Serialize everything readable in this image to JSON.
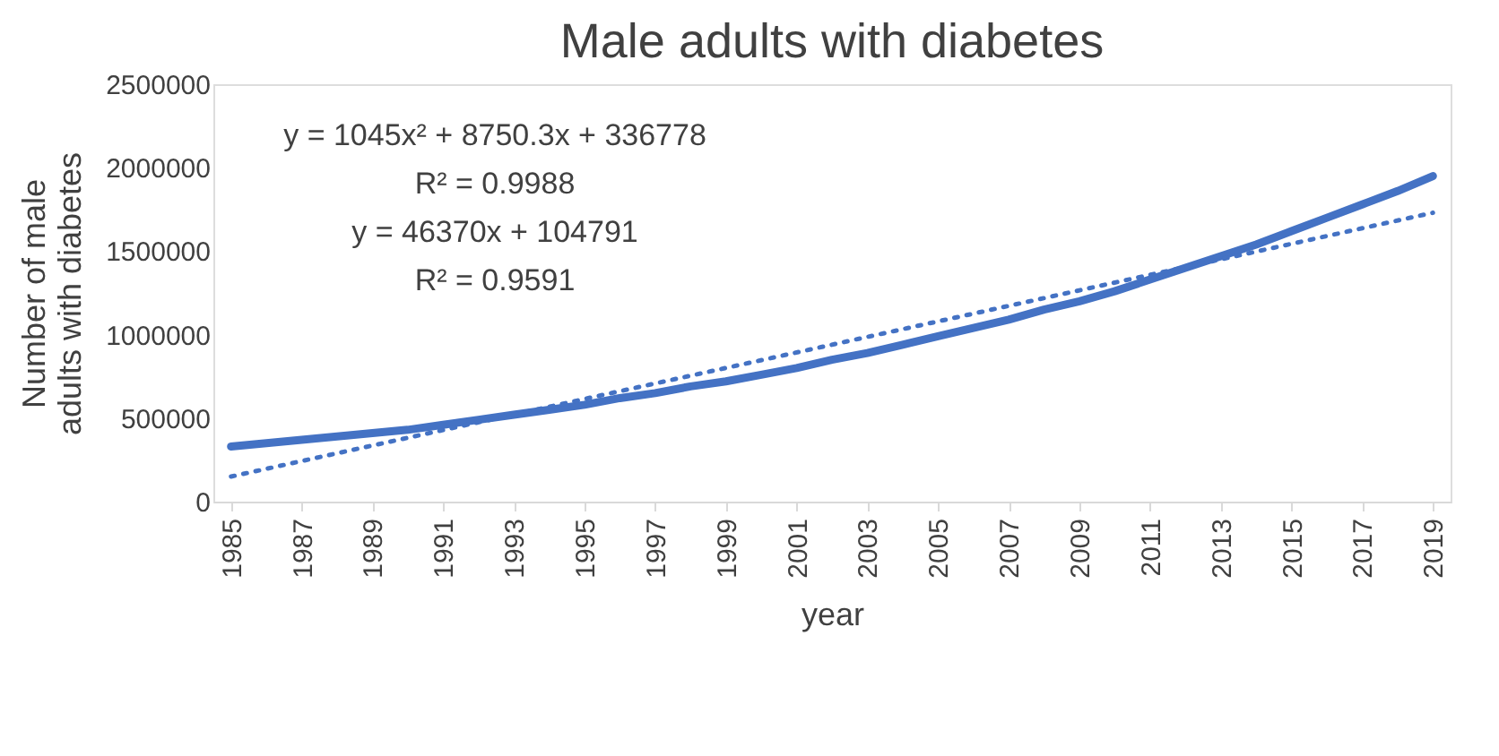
{
  "chart_data": {
    "type": "line",
    "title": "Male adults with diabetes",
    "xlabel": "year",
    "ylabel": "Number of male  adults with diabetes",
    "x": [
      1985,
      1986,
      1987,
      1988,
      1989,
      1990,
      1991,
      1992,
      1993,
      1994,
      1995,
      1996,
      1997,
      1998,
      1999,
      2000,
      2001,
      2002,
      2003,
      2004,
      2005,
      2006,
      2007,
      2008,
      2009,
      2010,
      2011,
      2012,
      2013,
      2014,
      2015,
      2016,
      2017,
      2018,
      2019
    ],
    "series": [
      {
        "color": "#4472c4",
        "values": [
          330000,
          350000,
          370000,
          390000,
          410000,
          430000,
          460000,
          490000,
          520000,
          550000,
          580000,
          620000,
          650000,
          690000,
          720000,
          760000,
          800000,
          850000,
          890000,
          940000,
          990000,
          1040000,
          1090000,
          1150000,
          1200000,
          1260000,
          1330000,
          1400000,
          1470000,
          1540000,
          1620000,
          1700000,
          1780000,
          1860000,
          1950000
        ]
      },
      {
        "type": "line",
        "line_style": "dotted",
        "color": "#4472c4",
        "x": [
          1985,
          2019
        ],
        "values": [
          150000,
          1730000
        ]
      }
    ],
    "xlim": [
      1984.5,
      2019.5
    ],
    "xticks": [
      1985,
      1987,
      1989,
      1991,
      1993,
      1995,
      1997,
      1999,
      2001,
      2003,
      2005,
      2007,
      2009,
      2011,
      2013,
      2015,
      2017,
      2019
    ],
    "ylim": [
      0,
      2500000
    ],
    "yticks": [
      0,
      500000,
      1000000,
      1500000,
      2000000,
      2500000
    ],
    "grid": false,
    "marker": "none",
    "line_style": "solid",
    "annotations": [
      "y = 1045x² + 8750.3x + 336778",
      "R² = 0.9988",
      "y = 46370x + 104791",
      "R² = 0.9591"
    ]
  }
}
